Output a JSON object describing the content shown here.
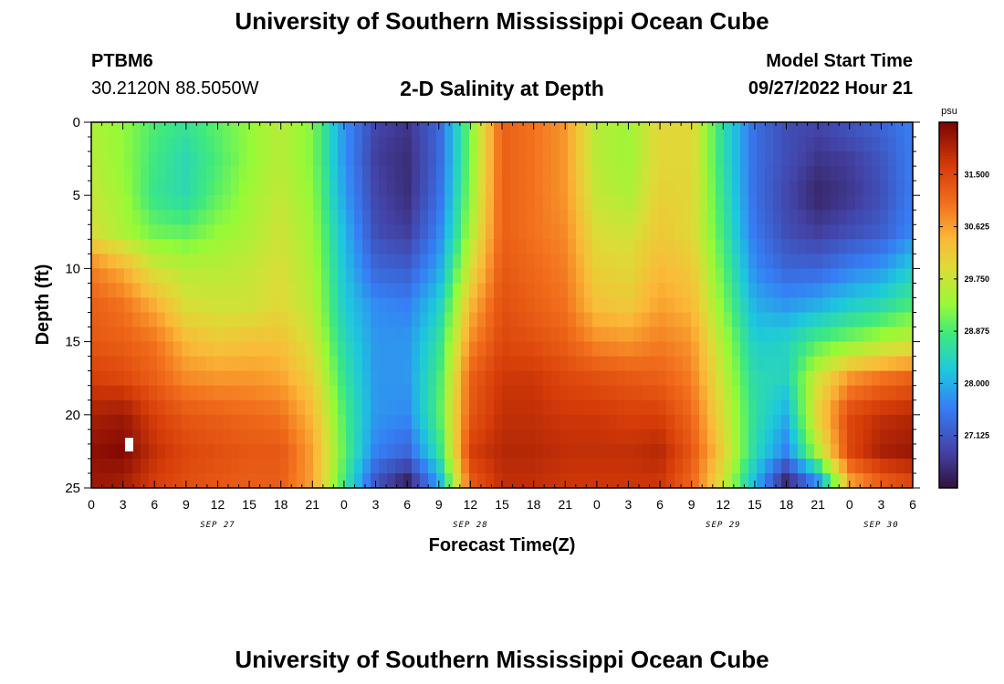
{
  "header": {
    "title": "University of Southern Mississippi Ocean Cube",
    "station": "PTBM6",
    "coords": "30.2120N  88.5050W",
    "chart_title": "2-D Salinity at Depth",
    "model_label": "Model Start Time",
    "model_value": "09/27/2022 Hour 21"
  },
  "footer": {
    "title": "University of Southern Mississippi Ocean Cube"
  },
  "chart_data": {
    "type": "heatmap",
    "title": "2-D Salinity at Depth",
    "xlabel": "Forecast Time(Z)",
    "ylabel": "Depth (ft)",
    "ylim": [
      0,
      25
    ],
    "xlim_hours": [
      0,
      78
    ],
    "x_tick_labels": [
      "0",
      "3",
      "6",
      "9",
      "12",
      "15",
      "18",
      "21",
      "0",
      "3",
      "6",
      "9",
      "12",
      "15",
      "18",
      "21",
      "0",
      "3",
      "6",
      "9",
      "12",
      "15",
      "18",
      "21",
      "0",
      "3",
      "6"
    ],
    "y_tick_labels": [
      "0",
      "5",
      "10",
      "15",
      "20",
      "25"
    ],
    "date_labels": [
      {
        "label": "SEP 27",
        "hour": 12
      },
      {
        "label": "SEP 28",
        "hour": 36
      },
      {
        "label": "SEP 29",
        "hour": 60
      },
      {
        "label": "SEP 30",
        "hour": 75
      }
    ],
    "colorbar": {
      "unit": "psu",
      "range": [
        26.25,
        32.375
      ],
      "ticks": [
        "31.500",
        "30.625",
        "29.750",
        "28.875",
        "28.000",
        "27.125"
      ]
    },
    "hours": [
      0,
      3,
      6,
      9,
      12,
      15,
      18,
      21,
      24,
      27,
      30,
      33,
      36,
      39,
      42,
      45,
      48,
      51,
      54,
      57,
      60,
      63,
      66,
      69,
      72,
      75,
      78
    ],
    "depths_ft": [
      0,
      2.5,
      5,
      7.5,
      10,
      12.5,
      15,
      17.5,
      20,
      22.5,
      25
    ],
    "values": [
      [
        29.5,
        29.3,
        28.9,
        28.7,
        29.0,
        29.3,
        29.6,
        29.2,
        27.8,
        26.9,
        26.7,
        27.3,
        29.2,
        31.2,
        31.0,
        30.7,
        29.6,
        29.4,
        30.0,
        30.0,
        28.6,
        27.4,
        27.0,
        26.9,
        27.1,
        27.3,
        27.6
      ],
      [
        29.6,
        29.3,
        28.8,
        28.5,
        28.9,
        29.3,
        29.6,
        29.2,
        27.8,
        26.8,
        26.6,
        27.3,
        29.2,
        31.2,
        31.0,
        30.7,
        29.6,
        29.4,
        30.0,
        30.0,
        28.6,
        27.4,
        27.0,
        26.7,
        26.8,
        27.1,
        27.6
      ],
      [
        29.7,
        29.4,
        28.7,
        28.5,
        29.0,
        29.4,
        29.7,
        29.3,
        27.9,
        26.9,
        26.6,
        27.4,
        29.3,
        31.2,
        31.0,
        30.7,
        29.7,
        29.5,
        30.1,
        30.0,
        28.7,
        27.4,
        26.9,
        26.5,
        26.7,
        27.0,
        27.6
      ],
      [
        29.9,
        29.5,
        29.1,
        29.0,
        29.3,
        29.5,
        29.8,
        29.4,
        28.1,
        27.0,
        26.8,
        27.6,
        29.5,
        31.2,
        31.0,
        30.8,
        29.9,
        29.8,
        30.2,
        30.0,
        28.8,
        27.5,
        27.0,
        26.8,
        27.0,
        27.2,
        27.7
      ],
      [
        30.9,
        30.5,
        29.8,
        29.6,
        29.6,
        29.7,
        29.9,
        29.5,
        28.2,
        27.3,
        27.2,
        27.9,
        29.9,
        31.3,
        31.1,
        30.9,
        30.1,
        30.0,
        30.4,
        30.2,
        29.0,
        27.7,
        27.3,
        27.3,
        27.6,
        27.8,
        28.3
      ],
      [
        31.2,
        31.0,
        30.5,
        29.9,
        29.8,
        29.8,
        30.0,
        29.6,
        28.3,
        27.7,
        27.6,
        28.3,
        30.4,
        31.4,
        31.2,
        31.0,
        30.3,
        30.2,
        30.6,
        30.4,
        29.2,
        28.0,
        27.8,
        28.0,
        28.3,
        28.5,
        28.9
      ],
      [
        31.3,
        31.2,
        31.0,
        30.4,
        30.2,
        30.3,
        30.3,
        29.8,
        28.5,
        27.8,
        27.8,
        28.6,
        30.8,
        31.5,
        31.4,
        31.2,
        30.8,
        30.7,
        30.9,
        30.7,
        29.5,
        28.3,
        28.4,
        28.9,
        29.2,
        29.5,
        29.7
      ],
      [
        31.6,
        31.5,
        31.2,
        30.8,
        30.7,
        30.7,
        30.6,
        30.1,
        28.7,
        27.8,
        27.8,
        28.8,
        31.2,
        31.7,
        31.7,
        31.5,
        31.4,
        31.3,
        31.2,
        30.9,
        29.7,
        28.5,
        28.4,
        29.8,
        30.7,
        31.0,
        31.2
      ],
      [
        32.0,
        32.1,
        31.6,
        31.3,
        31.2,
        31.1,
        31.0,
        30.4,
        28.9,
        27.8,
        27.7,
        28.9,
        31.3,
        31.8,
        31.8,
        31.7,
        31.7,
        31.6,
        31.6,
        31.1,
        29.9,
        28.6,
        28.0,
        30.1,
        31.5,
        31.8,
        31.9
      ],
      [
        32.2,
        32.3,
        31.8,
        31.5,
        31.4,
        31.3,
        31.3,
        30.6,
        29.0,
        27.6,
        27.3,
        28.6,
        31.6,
        31.9,
        31.9,
        31.8,
        31.8,
        31.8,
        31.9,
        31.3,
        30.1,
        28.5,
        27.6,
        29.5,
        31.5,
        32.0,
        32.1
      ],
      [
        32.1,
        32.0,
        31.6,
        31.4,
        31.3,
        31.2,
        31.2,
        30.6,
        28.8,
        27.0,
        26.3,
        27.8,
        31.2,
        31.8,
        31.8,
        31.7,
        31.7,
        31.7,
        31.7,
        31.1,
        29.8,
        28.0,
        26.3,
        27.4,
        30.4,
        31.1,
        31.4
      ]
    ]
  }
}
